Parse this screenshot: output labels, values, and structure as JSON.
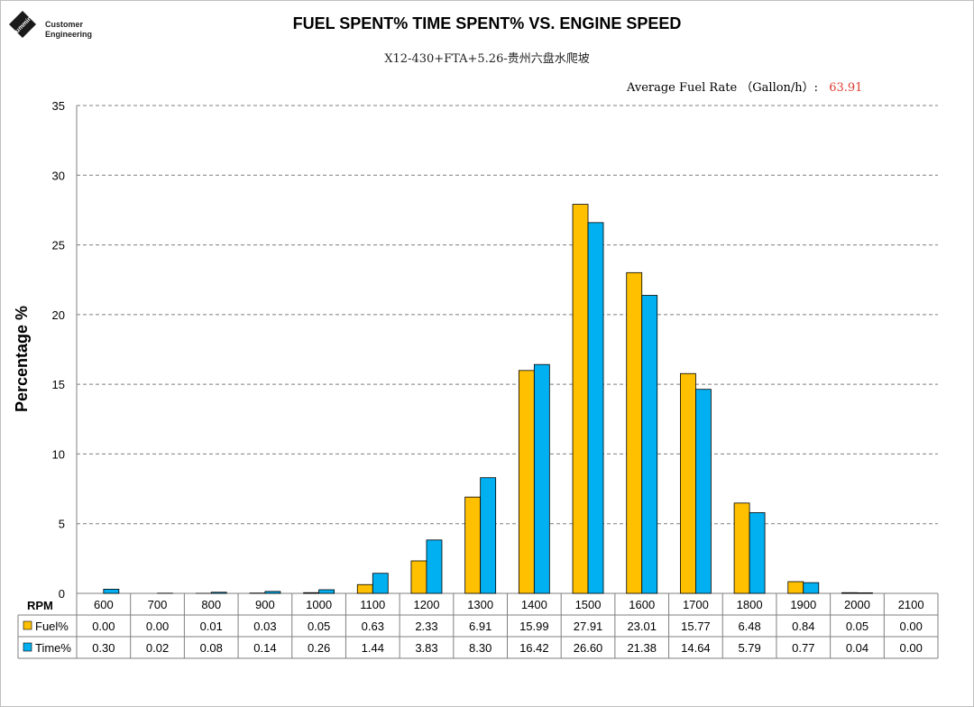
{
  "header": {
    "logo_line1": "Customer",
    "logo_line2": "Engineering",
    "logo_mark_icon": "cummins-logo-icon"
  },
  "chart_data": {
    "type": "bar",
    "title": "FUEL SPENT% TIME SPENT% VS. ENGINE SPEED",
    "subtitle": "X12-430+FTA+5.26-贵州六盘水爬坡",
    "average_label": "Average Fuel Rate （Gallon/h）:",
    "average_value": "63.91",
    "xlabel": "RPM",
    "ylabel": "Percentage %",
    "ylim": [
      0,
      35
    ],
    "yticks": [
      0,
      5,
      10,
      15,
      20,
      25,
      30,
      35
    ],
    "grid": true,
    "categories": [
      "600",
      "700",
      "800",
      "900",
      "1000",
      "1100",
      "1200",
      "1300",
      "1400",
      "1500",
      "1600",
      "1700",
      "1800",
      "1900",
      "2000",
      "2100"
    ],
    "series": [
      {
        "name": "Fuel%",
        "color": "#ffc000",
        "values": [
          0.0,
          0.0,
          0.01,
          0.03,
          0.05,
          0.63,
          2.33,
          6.91,
          15.99,
          27.91,
          23.01,
          15.77,
          6.48,
          0.84,
          0.05,
          0.0
        ],
        "labels": [
          "0.00",
          "0.00",
          "0.01",
          "0.03",
          "0.05",
          "0.63",
          "2.33",
          "6.91",
          "15.99",
          "27.91",
          "23.01",
          "15.77",
          "6.48",
          "0.84",
          "0.05",
          "0.00"
        ]
      },
      {
        "name": "Time%",
        "color": "#00b0f0",
        "values": [
          0.3,
          0.02,
          0.08,
          0.14,
          0.26,
          1.44,
          3.83,
          8.3,
          16.42,
          26.6,
          21.38,
          14.64,
          5.79,
          0.77,
          0.04,
          0.0
        ],
        "labels": [
          "0.30",
          "0.02",
          "0.08",
          "0.14",
          "0.26",
          "1.44",
          "3.83",
          "8.30",
          "16.42",
          "26.60",
          "21.38",
          "14.64",
          "5.79",
          "0.77",
          "0.04",
          "0.00"
        ]
      }
    ]
  }
}
